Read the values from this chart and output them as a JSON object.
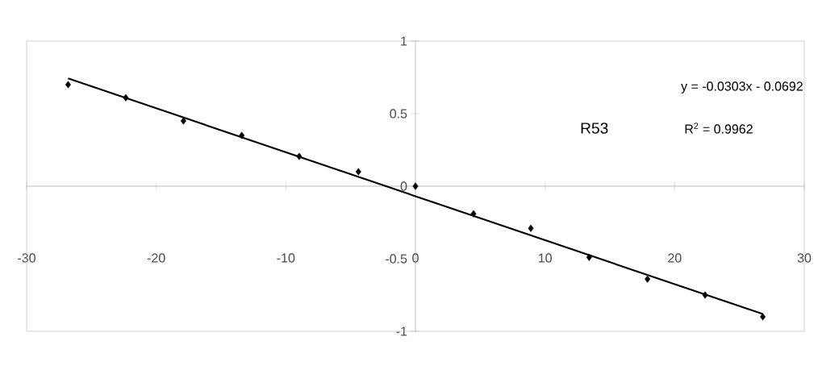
{
  "chart_data": {
    "type": "scatter",
    "marker": "diamond",
    "xlim": [
      -30,
      30
    ],
    "xticks": [
      -30,
      -20,
      -10,
      0,
      10,
      20,
      30
    ],
    "ylim": [
      -1,
      1
    ],
    "yticks": [
      -1,
      -0.5,
      0,
      0.5,
      1
    ],
    "annotations": [
      "y = -0.0303x - 0.0692",
      "R53",
      "R$^{2}$ = 0.9962"
    ],
    "series": [
      {
        "color": "#000000",
        "x": [
          -26.8,
          -22.35,
          -17.9,
          -13.4,
          -8.97,
          -4.4,
          0,
          4.48,
          8.9,
          13.4,
          17.9,
          22.35,
          26.8
        ],
        "values": [
          0.7,
          0.61,
          0.45,
          0.35,
          0.205,
          0.1,
          0,
          -0.19,
          -0.29,
          -0.49,
          -0.64,
          -0.75,
          -0.9
        ]
      },
      {
        "type": "line",
        "marker": "none",
        "color": "#000000",
        "line_style": "solid",
        "x": [
          -26.8,
          26.8
        ],
        "values": [
          0.743,
          -0.881
        ]
      }
    ]
  }
}
